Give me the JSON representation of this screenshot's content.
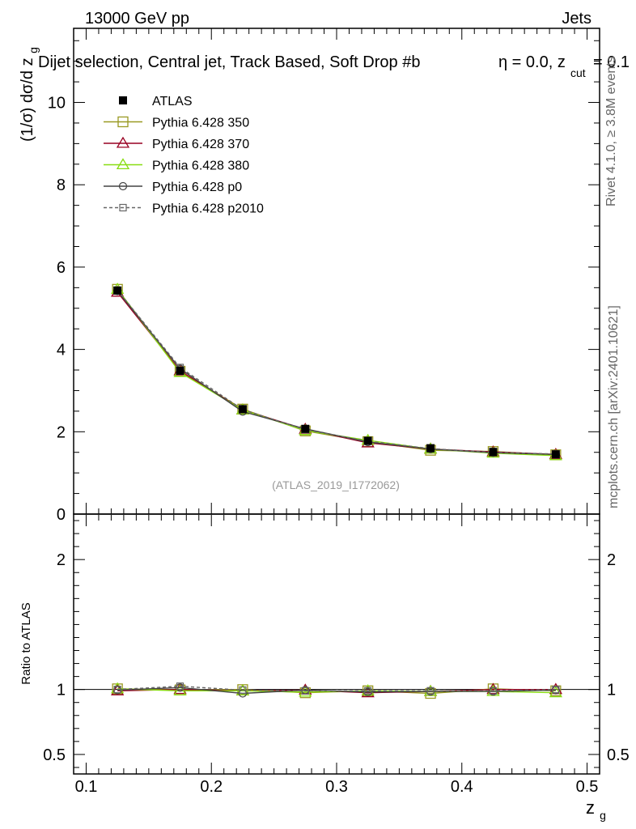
{
  "header": {
    "energy_label": "13000 GeV pp",
    "category_label": "Jets",
    "selection_title": "Dijet selection, Central jet, Track Based, Soft Drop #b",
    "eta_text": "η = 0.0, z",
    "zcut_sub": "cut",
    "zcut_value": "= 0.1",
    "side_rivet": "Rivet 4.1.0, ≥ 3.8M events",
    "side_mcplots": "mcplots.cern.ch [arXiv:2401.10621]",
    "analysis_id": "(ATLAS_2019_I1772062)"
  },
  "axes": {
    "main_ylabel_a": "(1/σ) dσ/d z",
    "main_ylabel_sub": "g",
    "ratio_ylabel": "Ratio to ATLAS",
    "xlabel": "z",
    "xlabel_sub": "g"
  },
  "colors": {
    "atlas": "#000000",
    "p350": "#999922",
    "p370": "#990022",
    "p380": "#88dd11",
    "p0": "#444444",
    "p2010": "#666666"
  },
  "chart_data": {
    "type": "line",
    "x": [
      0.125,
      0.175,
      0.225,
      0.275,
      0.325,
      0.375,
      0.425,
      0.475
    ],
    "x_ticks": [
      "0.1",
      "0.2",
      "0.3",
      "0.4",
      "0.5"
    ],
    "x_tick_values": [
      0.1,
      0.2,
      0.3,
      0.4,
      0.5
    ],
    "xlim": [
      0.09,
      0.51
    ],
    "main": {
      "ylim": [
        0,
        11.8
      ],
      "y_ticks": [
        "0",
        "2",
        "4",
        "6",
        "8",
        "10"
      ],
      "y_tick_values": [
        0,
        2,
        4,
        6,
        8,
        10
      ]
    },
    "ratio": {
      "ylim": [
        0.35,
        2.35
      ],
      "y_ticks": [
        "0.5",
        "1",
        "2"
      ],
      "y_tick_values": [
        0.5,
        1,
        2
      ]
    },
    "series": [
      {
        "name": "ATLAS",
        "key": "atlas",
        "marker": "filled-square",
        "dash": "none",
        "values": [
          5.43,
          3.48,
          2.55,
          2.07,
          1.78,
          1.6,
          1.51,
          1.45
        ],
        "ratio": [
          1.0,
          1.0,
          1.0,
          1.0,
          1.0,
          1.0,
          1.0,
          1.0
        ]
      },
      {
        "name": "Pythia 6.428 350",
        "key": "p350",
        "marker": "open-square",
        "dash": "none",
        "values": [
          5.46,
          3.47,
          2.55,
          2.02,
          1.76,
          1.55,
          1.52,
          1.44
        ],
        "ratio": [
          1.005,
          0.997,
          0.999,
          0.975,
          0.99,
          0.97,
          1.005,
          0.99
        ]
      },
      {
        "name": "Pythia 6.428 370",
        "key": "p370",
        "marker": "open-triangle",
        "dash": "none",
        "values": [
          5.39,
          3.48,
          2.53,
          2.06,
          1.73,
          1.58,
          1.51,
          1.45
        ],
        "ratio": [
          0.99,
          1.0,
          0.99,
          0.995,
          0.975,
          0.985,
          1.0,
          1.0
        ]
      },
      {
        "name": "Pythia 6.428 380",
        "key": "p380",
        "marker": "open-triangle",
        "dash": "none",
        "values": [
          5.46,
          3.44,
          2.53,
          2.03,
          1.79,
          1.58,
          1.48,
          1.42
        ],
        "ratio": [
          1.005,
          0.99,
          0.99,
          0.98,
          0.99,
          0.985,
          0.985,
          0.975
        ]
      },
      {
        "name": "Pythia 6.428 p0",
        "key": "p0",
        "marker": "open-circle",
        "dash": "none",
        "values": [
          5.42,
          3.53,
          2.49,
          2.07,
          1.75,
          1.58,
          1.49,
          1.45
        ],
        "ratio": [
          0.995,
          1.015,
          0.97,
          0.995,
          0.98,
          0.985,
          0.985,
          0.995
        ]
      },
      {
        "name": "Pythia 6.428 p2010",
        "key": "p2010",
        "marker": "open-square-small",
        "dash": "4,3",
        "values": [
          5.44,
          3.56,
          2.54,
          2.05,
          1.77,
          1.59,
          1.5,
          1.46
        ],
        "ratio": [
          1.0,
          1.025,
          0.995,
          0.99,
          0.99,
          0.99,
          0.99,
          1.0
        ]
      }
    ]
  }
}
